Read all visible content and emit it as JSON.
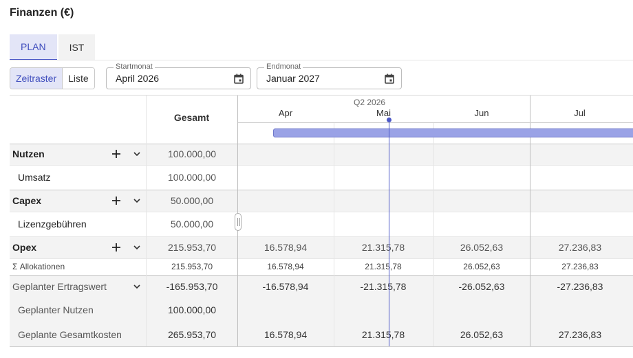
{
  "title": "Finanzen (€)",
  "tabs": [
    {
      "label": "PLAN",
      "active": true
    },
    {
      "label": "IST",
      "active": false
    }
  ],
  "view_toggle": [
    {
      "label": "Zeitraster",
      "active": true
    },
    {
      "label": "Liste",
      "active": false
    }
  ],
  "start_month": {
    "label": "Startmonat",
    "value": "April 2026"
  },
  "end_month": {
    "label": "Endmonat",
    "value": "Januar 2027"
  },
  "grid": {
    "total_header": "Gesamt",
    "quarter": "Q2 2026",
    "months": [
      "Apr",
      "Mai",
      "Jun",
      "Jul"
    ],
    "rows": [
      {
        "label": "Nutzen",
        "kind": "group",
        "total": "100.000,00",
        "values": [
          "",
          "",
          "",
          ""
        ]
      },
      {
        "label": "Umsatz",
        "kind": "item",
        "total": "100.000,00",
        "values": [
          "",
          "",
          "",
          ""
        ]
      },
      {
        "label": "Capex",
        "kind": "group",
        "total": "50.000,00",
        "values": [
          "",
          "",
          "",
          ""
        ]
      },
      {
        "label": "Lizenzgebühren",
        "kind": "item",
        "total": "50.000,00",
        "values": [
          "",
          "",
          "",
          ""
        ]
      },
      {
        "label": "Opex",
        "kind": "group",
        "total": "215.953,70",
        "values": [
          "16.578,94",
          "21.315,78",
          "26.052,63",
          "27.236,83"
        ]
      },
      {
        "label": "Σ Allokationen",
        "kind": "sum",
        "total": "215.953,70",
        "values": [
          "16.578,94",
          "21.315,78",
          "26.052,63",
          "27.236,83"
        ]
      },
      {
        "label": "Geplanter Ertragswert",
        "kind": "summary",
        "total": "-165.953,70",
        "values": [
          "-16.578,94",
          "-21.315,78",
          "-26.052,63",
          "-27.236,83"
        ]
      },
      {
        "label": "Geplanter Nutzen",
        "kind": "summary-item",
        "total": "100.000,00",
        "values": [
          "",
          "",
          "",
          ""
        ]
      },
      {
        "label": "Geplante Gesamtkosten",
        "kind": "summary-item",
        "total": "265.953,70",
        "values": [
          "16.578,94",
          "21.315,78",
          "26.052,63",
          "27.236,83"
        ]
      }
    ]
  },
  "colors": {
    "accent": "#4b57c7",
    "accent_bg": "#e3e5f7",
    "bar": "#9aa2e6"
  },
  "icons": [
    "plus-icon",
    "chevron-down-icon",
    "calendar-icon"
  ]
}
